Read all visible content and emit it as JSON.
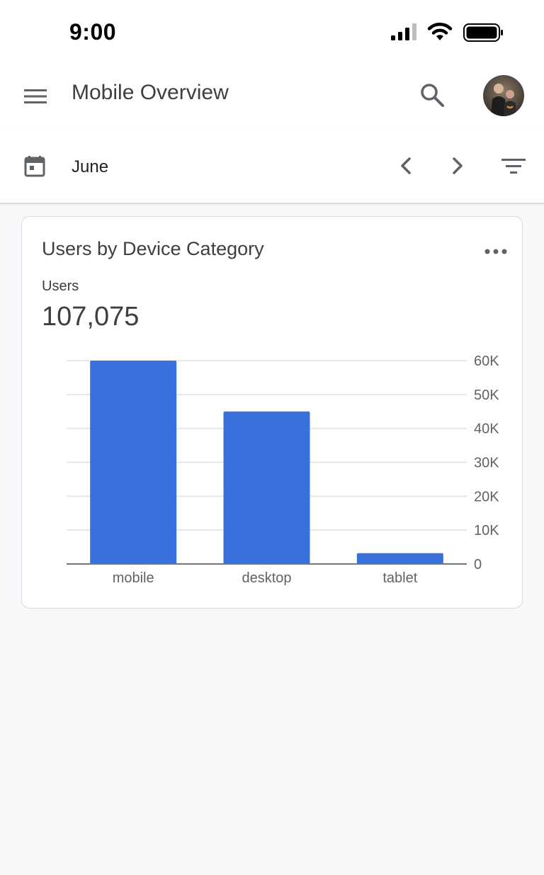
{
  "status_bar": {
    "time": "9:00"
  },
  "app_bar": {
    "title": "Mobile Overview",
    "menu_icon": "hamburger-menu-icon",
    "search_icon": "search-icon",
    "avatar_icon": "user-avatar"
  },
  "date_bar": {
    "label": "June",
    "calendar_icon": "calendar-icon",
    "prev_icon": "chevron-left-icon",
    "next_icon": "chevron-right-icon",
    "filter_icon": "filter-icon"
  },
  "card": {
    "title": "Users by Device Category",
    "metric_label": "Users",
    "metric_value": "107,075",
    "more_icon": "more-horizontal-icon"
  },
  "colors": {
    "bar": "#3871db",
    "grid": "#e0e0e0",
    "axis": "#757575",
    "tick_text": "#5f6368"
  },
  "chart_data": {
    "type": "bar",
    "categories": [
      "mobile",
      "desktop",
      "tablet"
    ],
    "values": [
      60000,
      45000,
      3200
    ],
    "ylim": [
      0,
      60000
    ],
    "yticks": [
      0,
      10000,
      20000,
      30000,
      40000,
      50000,
      60000
    ],
    "ytick_labels": [
      "0",
      "10K",
      "20K",
      "30K",
      "40K",
      "50K",
      "60K"
    ],
    "y_axis_position": "right",
    "grid": true,
    "title": "",
    "xlabel": "",
    "ylabel": ""
  }
}
